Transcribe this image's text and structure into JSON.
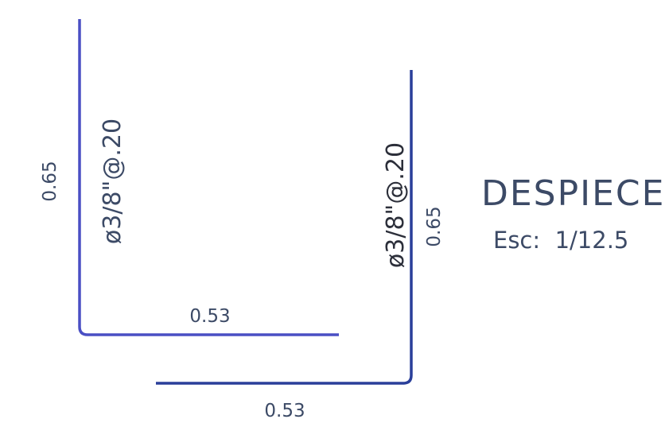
{
  "drawing": {
    "title": "DESPIECE",
    "scale": "Esc:  1/12.5",
    "colors": {
      "bar_left": "#4a4fc4",
      "bar_right": "#2a3f9a",
      "text": "#3c4a66",
      "label": "#2c2f3a"
    }
  },
  "bars": [
    {
      "spec": "ø3/8\"@.20",
      "vertical_length": "0.65",
      "horizontal_length": "0.53"
    },
    {
      "spec": "ø3/8\"@.20",
      "vertical_length": "0.65",
      "horizontal_length": "0.53"
    }
  ]
}
